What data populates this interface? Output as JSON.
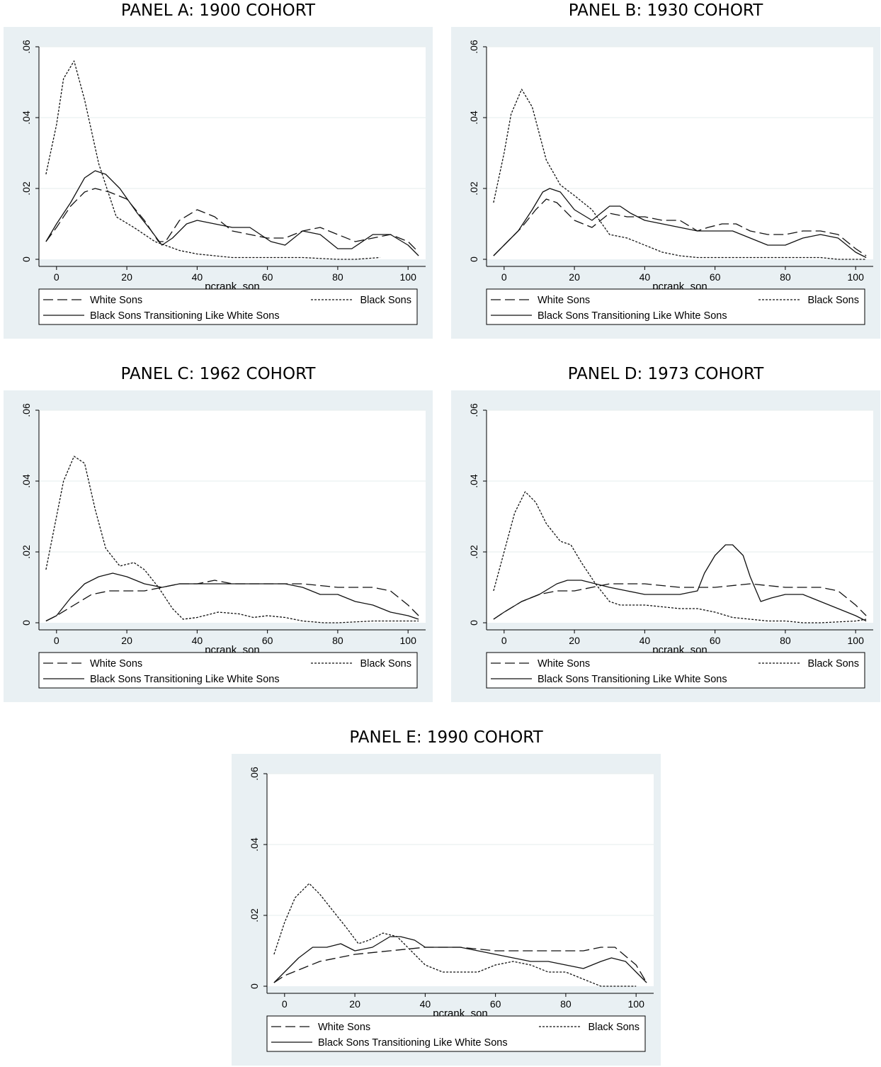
{
  "chart_data": [
    {
      "type": "line",
      "title": "PANEL A: 1900 COHORT",
      "xlabel": "pcrank_son",
      "ylabel": "",
      "xlim": [
        -5,
        105
      ],
      "ylim": [
        0,
        0.06
      ],
      "xticks": [
        0,
        20,
        40,
        60,
        80,
        100
      ],
      "yticks": [
        0,
        0.02,
        0.04,
        0.06
      ],
      "ytick_labels": [
        "0",
        ".02",
        ".04",
        ".06"
      ],
      "legend": "bottom",
      "series": [
        {
          "name": "White Sons",
          "style": "dashed",
          "x": [
            -3,
            0,
            4,
            8,
            11,
            15,
            20,
            25,
            29,
            31,
            35,
            40,
            45,
            50,
            55,
            60,
            65,
            70,
            75,
            80,
            85,
            90,
            95,
            100,
            103
          ],
          "y": [
            0.005,
            0.009,
            0.015,
            0.019,
            0.02,
            0.019,
            0.017,
            0.011,
            0.005,
            0.005,
            0.011,
            0.014,
            0.012,
            0.008,
            0.007,
            0.006,
            0.006,
            0.008,
            0.009,
            0.007,
            0.005,
            0.006,
            0.007,
            0.005,
            0.002
          ]
        },
        {
          "name": "Black Sons",
          "style": "dotted",
          "x": [
            -3,
            0,
            2,
            5,
            8,
            12,
            17,
            22,
            28,
            35,
            40,
            50,
            60,
            70,
            80,
            85,
            92
          ],
          "y": [
            0.024,
            0.038,
            0.051,
            0.056,
            0.045,
            0.027,
            0.012,
            0.009,
            0.005,
            0.0025,
            0.0015,
            0.0005,
            0.0005,
            0.0005,
            0.0,
            0.0,
            0.0005
          ]
        },
        {
          "name": "Black Sons Transitioning Like White Sons",
          "style": "solid",
          "x": [
            -3,
            0,
            4,
            8,
            11,
            14,
            18,
            23,
            27,
            30,
            33,
            37,
            40,
            45,
            50,
            55,
            58,
            61,
            65,
            70,
            75,
            80,
            84,
            90,
            95,
            100,
            103
          ],
          "y": [
            0.005,
            0.01,
            0.016,
            0.023,
            0.025,
            0.024,
            0.02,
            0.013,
            0.008,
            0.004,
            0.006,
            0.01,
            0.011,
            0.01,
            0.009,
            0.009,
            0.007,
            0.005,
            0.004,
            0.008,
            0.007,
            0.003,
            0.003,
            0.007,
            0.007,
            0.004,
            0.001
          ]
        }
      ],
      "legend_labels": [
        "White Sons",
        "Black Sons",
        "Black Sons Transitioning Like White Sons"
      ]
    },
    {
      "type": "line",
      "title": "PANEL B: 1930 COHORT",
      "xlabel": "pcrank_son",
      "ylabel": "",
      "xlim": [
        -5,
        105
      ],
      "ylim": [
        0,
        0.06
      ],
      "xticks": [
        0,
        20,
        40,
        60,
        80,
        100
      ],
      "yticks": [
        0,
        0.02,
        0.04,
        0.06
      ],
      "ytick_labels": [
        "0",
        ".02",
        ".04",
        ".06"
      ],
      "legend": "bottom",
      "series": [
        {
          "name": "White Sons",
          "style": "dashed",
          "x": [
            -3,
            0,
            5,
            9,
            12,
            15,
            20,
            25,
            30,
            35,
            40,
            45,
            50,
            55,
            58,
            62,
            66,
            70,
            75,
            80,
            85,
            90,
            95,
            100,
            103
          ],
          "y": [
            0.001,
            0.004,
            0.009,
            0.014,
            0.017,
            0.016,
            0.011,
            0.009,
            0.013,
            0.012,
            0.012,
            0.011,
            0.011,
            0.008,
            0.009,
            0.01,
            0.01,
            0.008,
            0.007,
            0.007,
            0.008,
            0.008,
            0.007,
            0.003,
            0.001
          ]
        },
        {
          "name": "Black Sons",
          "style": "dotted",
          "x": [
            -3,
            0,
            2,
            5,
            8,
            12,
            16,
            20,
            25,
            30,
            35,
            40,
            45,
            50,
            55,
            60,
            70,
            80,
            90,
            95,
            103
          ],
          "y": [
            0.016,
            0.03,
            0.041,
            0.048,
            0.043,
            0.028,
            0.021,
            0.018,
            0.014,
            0.007,
            0.006,
            0.004,
            0.002,
            0.001,
            0.0005,
            0.0005,
            0.0005,
            0.0005,
            0.0005,
            0.0,
            0.0
          ]
        },
        {
          "name": "Black Sons Transitioning Like White Sons",
          "style": "solid",
          "x": [
            -3,
            0,
            4,
            8,
            11,
            13,
            16,
            20,
            25,
            30,
            33,
            36,
            40,
            45,
            50,
            55,
            60,
            65,
            70,
            75,
            80,
            85,
            90,
            95,
            100,
            103
          ],
          "y": [
            0.001,
            0.004,
            0.008,
            0.014,
            0.019,
            0.02,
            0.019,
            0.014,
            0.011,
            0.015,
            0.015,
            0.013,
            0.011,
            0.01,
            0.009,
            0.008,
            0.008,
            0.008,
            0.006,
            0.004,
            0.004,
            0.006,
            0.007,
            0.006,
            0.002,
            0.0005
          ]
        }
      ],
      "legend_labels": [
        "White Sons",
        "Black Sons",
        "Black Sons Transitioning Like White Sons"
      ]
    },
    {
      "type": "line",
      "title": "PANEL C: 1962 COHORT",
      "xlabel": "pcrank_son",
      "ylabel": "",
      "xlim": [
        -5,
        105
      ],
      "ylim": [
        0,
        0.06
      ],
      "xticks": [
        0,
        20,
        40,
        60,
        80,
        100
      ],
      "yticks": [
        0,
        0.02,
        0.04,
        0.06
      ],
      "ytick_labels": [
        "0",
        ".02",
        ".04",
        ".06"
      ],
      "legend": "bottom",
      "series": [
        {
          "name": "White Sons",
          "style": "dashed",
          "x": [
            -3,
            0,
            5,
            10,
            15,
            20,
            25,
            30,
            35,
            40,
            45,
            50,
            60,
            70,
            80,
            90,
            95,
            100,
            103
          ],
          "y": [
            0.0005,
            0.002,
            0.005,
            0.008,
            0.009,
            0.009,
            0.009,
            0.01,
            0.011,
            0.011,
            0.012,
            0.011,
            0.011,
            0.011,
            0.01,
            0.01,
            0.009,
            0.005,
            0.002
          ]
        },
        {
          "name": "Black Sons",
          "style": "dotted",
          "x": [
            -3,
            0,
            2,
            5,
            8,
            11,
            14,
            18,
            22,
            25,
            29,
            33,
            36,
            40,
            46,
            52,
            56,
            60,
            65,
            70,
            76,
            80,
            90,
            100,
            103
          ],
          "y": [
            0.015,
            0.03,
            0.04,
            0.047,
            0.045,
            0.032,
            0.021,
            0.016,
            0.017,
            0.015,
            0.01,
            0.004,
            0.001,
            0.0015,
            0.003,
            0.0025,
            0.0015,
            0.002,
            0.0015,
            0.0005,
            0.0,
            0.0,
            0.0005,
            0.0005,
            0.0005
          ]
        },
        {
          "name": "Black Sons Transitioning Like White Sons",
          "style": "solid",
          "x": [
            -3,
            0,
            4,
            8,
            12,
            16,
            20,
            25,
            30,
            35,
            40,
            45,
            50,
            55,
            60,
            65,
            70,
            75,
            80,
            85,
            90,
            95,
            100,
            103
          ],
          "y": [
            0.0005,
            0.002,
            0.007,
            0.011,
            0.013,
            0.014,
            0.013,
            0.011,
            0.01,
            0.011,
            0.011,
            0.011,
            0.011,
            0.011,
            0.011,
            0.011,
            0.01,
            0.008,
            0.008,
            0.006,
            0.005,
            0.003,
            0.002,
            0.001
          ]
        }
      ],
      "legend_labels": [
        "White Sons",
        "Black Sons",
        "Black Sons Transitioning Like White Sons"
      ]
    },
    {
      "type": "line",
      "title": "PANEL D: 1973 COHORT",
      "xlabel": "pcrank_son",
      "ylabel": "",
      "xlim": [
        -5,
        105
      ],
      "ylim": [
        0,
        0.06
      ],
      "xticks": [
        0,
        20,
        40,
        60,
        80,
        100
      ],
      "yticks": [
        0,
        0.02,
        0.04,
        0.06
      ],
      "ytick_labels": [
        "0",
        ".02",
        ".04",
        ".06"
      ],
      "legend": "bottom",
      "series": [
        {
          "name": "White Sons",
          "style": "dashed",
          "x": [
            -3,
            0,
            5,
            10,
            15,
            20,
            25,
            30,
            40,
            50,
            60,
            70,
            80,
            90,
            95,
            100,
            103
          ],
          "y": [
            0.001,
            0.003,
            0.006,
            0.008,
            0.009,
            0.009,
            0.01,
            0.011,
            0.011,
            0.01,
            0.01,
            0.011,
            0.01,
            0.01,
            0.009,
            0.005,
            0.002
          ]
        },
        {
          "name": "Black Sons",
          "style": "dotted",
          "x": [
            -3,
            0,
            3,
            6,
            9,
            12,
            16,
            19,
            22,
            26,
            30,
            33,
            40,
            50,
            55,
            60,
            65,
            70,
            75,
            80,
            85,
            90,
            100,
            103
          ],
          "y": [
            0.009,
            0.02,
            0.031,
            0.037,
            0.034,
            0.028,
            0.023,
            0.022,
            0.017,
            0.011,
            0.006,
            0.005,
            0.005,
            0.004,
            0.004,
            0.003,
            0.0015,
            0.001,
            0.0005,
            0.0005,
            0.0,
            0.0,
            0.0005,
            0.001
          ]
        },
        {
          "name": "Black Sons Transitioning Like White Sons",
          "style": "solid",
          "x": [
            -3,
            0,
            5,
            10,
            15,
            18,
            22,
            26,
            30,
            35,
            40,
            45,
            50,
            55,
            57,
            60,
            63,
            65,
            68,
            70,
            73,
            76,
            80,
            85,
            90,
            95,
            100,
            103
          ],
          "y": [
            0.001,
            0.003,
            0.006,
            0.008,
            0.011,
            0.012,
            0.012,
            0.011,
            0.01,
            0.009,
            0.008,
            0.008,
            0.008,
            0.009,
            0.014,
            0.019,
            0.022,
            0.022,
            0.019,
            0.013,
            0.006,
            0.007,
            0.008,
            0.008,
            0.006,
            0.004,
            0.002,
            0.0005
          ]
        }
      ],
      "legend_labels": [
        "White Sons",
        "Black Sons",
        "Black Sons Transitioning Like White Sons"
      ]
    },
    {
      "type": "line",
      "title": "PANEL E: 1990 COHORT",
      "xlabel": "pcrank_son",
      "ylabel": "",
      "xlim": [
        -5,
        105
      ],
      "ylim": [
        0,
        0.06
      ],
      "xticks": [
        0,
        20,
        40,
        60,
        80,
        100
      ],
      "yticks": [
        0,
        0.02,
        0.04,
        0.06
      ],
      "ytick_labels": [
        "0",
        ".02",
        ".04",
        ".06"
      ],
      "legend": "bottom",
      "series": [
        {
          "name": "White Sons",
          "style": "dashed",
          "x": [
            -3,
            0,
            5,
            10,
            15,
            20,
            30,
            40,
            50,
            60,
            70,
            80,
            85,
            90,
            94,
            100,
            103
          ],
          "y": [
            0.001,
            0.003,
            0.005,
            0.007,
            0.008,
            0.009,
            0.01,
            0.011,
            0.011,
            0.01,
            0.01,
            0.01,
            0.01,
            0.011,
            0.011,
            0.006,
            0.001
          ]
        },
        {
          "name": "Black Sons",
          "style": "dotted",
          "x": [
            -3,
            0,
            3,
            7,
            10,
            14,
            18,
            21,
            24,
            28,
            32,
            36,
            40,
            45,
            50,
            55,
            60,
            65,
            70,
            75,
            80,
            85,
            90,
            95,
            100
          ],
          "y": [
            0.009,
            0.018,
            0.025,
            0.029,
            0.026,
            0.021,
            0.016,
            0.012,
            0.013,
            0.015,
            0.014,
            0.01,
            0.006,
            0.004,
            0.004,
            0.004,
            0.006,
            0.007,
            0.006,
            0.004,
            0.004,
            0.002,
            0.0,
            0.0,
            0.0
          ]
        },
        {
          "name": "Black Sons Transitioning Like White Sons",
          "style": "solid",
          "x": [
            -3,
            0,
            4,
            8,
            12,
            16,
            20,
            25,
            30,
            33,
            37,
            40,
            45,
            50,
            55,
            60,
            65,
            70,
            75,
            80,
            85,
            90,
            93,
            97,
            100,
            103
          ],
          "y": [
            0.001,
            0.004,
            0.008,
            0.011,
            0.011,
            0.012,
            0.01,
            0.011,
            0.014,
            0.014,
            0.013,
            0.011,
            0.011,
            0.011,
            0.01,
            0.009,
            0.008,
            0.007,
            0.007,
            0.006,
            0.005,
            0.007,
            0.008,
            0.007,
            0.004,
            0.001
          ]
        }
      ],
      "legend_labels": [
        "White Sons",
        "Black Sons",
        "Black Sons Transitioning Like White Sons"
      ]
    }
  ]
}
